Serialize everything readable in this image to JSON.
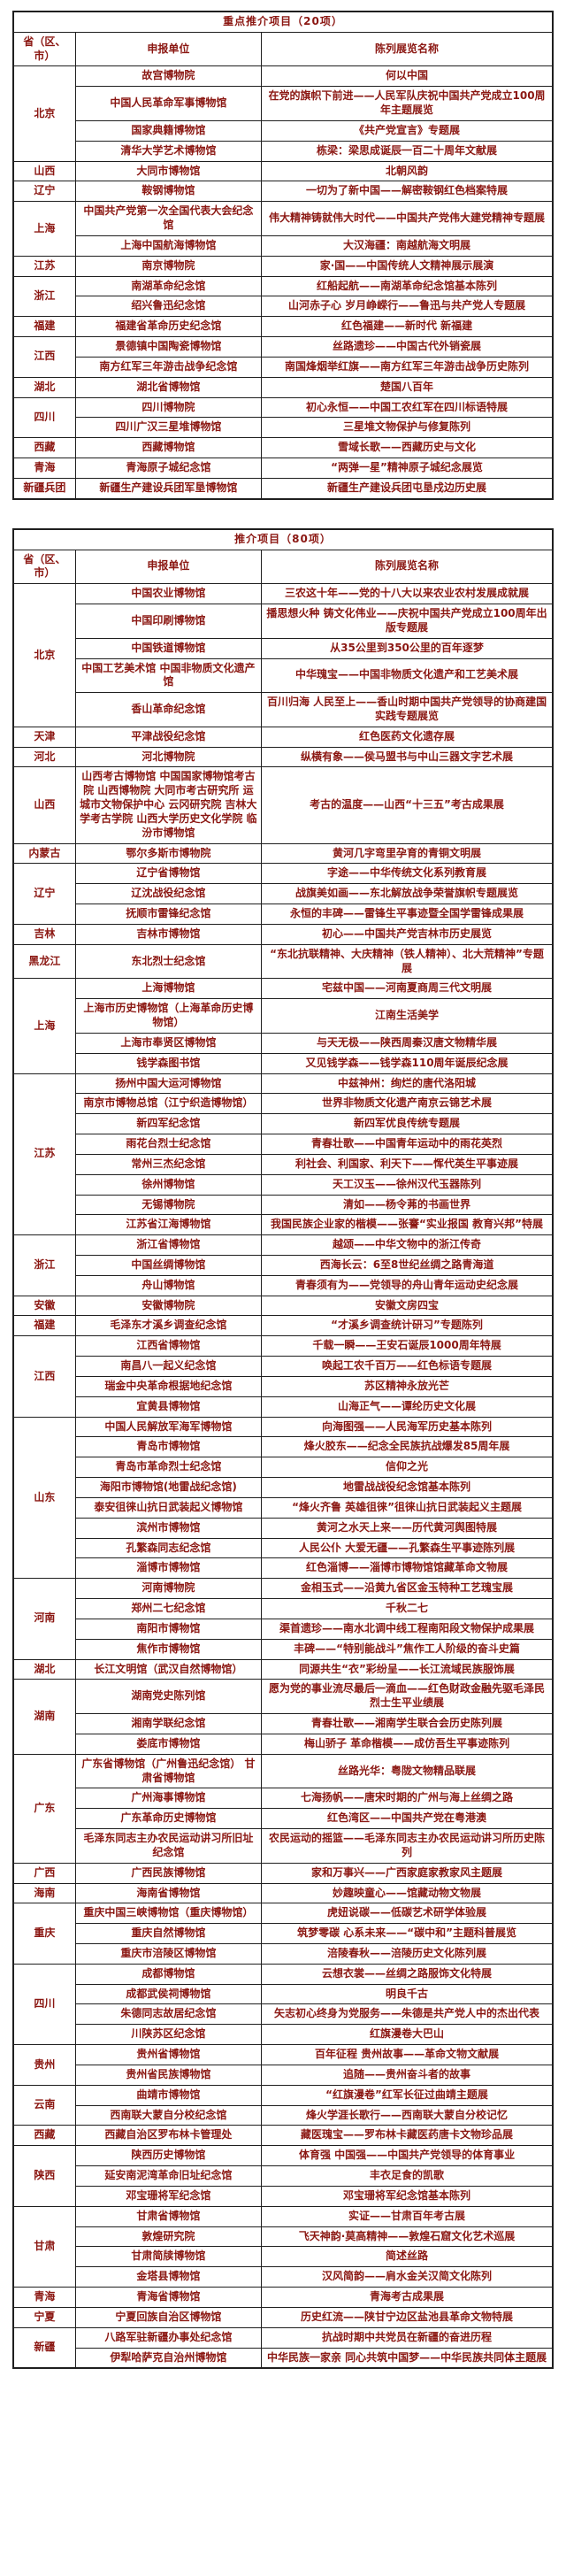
{
  "colors": {
    "text": "#8b1712",
    "border": "#1f1f1f",
    "background": "#ffffff"
  },
  "tables": [
    {
      "title": "重点推介项目（20项）",
      "headers": {
        "province": "省（区、市）",
        "unit": "申报单位",
        "exhibition": "陈列展览名称"
      },
      "groups": [
        {
          "province": "北京",
          "rows": [
            {
              "unit": "故宫博物院",
              "exhibition": "何以中国"
            },
            {
              "unit": "中国人民革命军事博物馆",
              "exhibition": "在党的旗帜下前进——人民军队庆祝中国共产党成立100周年主题展览"
            },
            {
              "unit": "国家典籍博物馆",
              "exhibition": "《共产党宣言》专题展"
            },
            {
              "unit": "清华大学艺术博物馆",
              "exhibition": "栋梁：梁思成诞辰一百二十周年文献展"
            }
          ]
        },
        {
          "province": "山西",
          "rows": [
            {
              "unit": "大同市博物馆",
              "exhibition": "北朝风韵"
            }
          ]
        },
        {
          "province": "辽宁",
          "rows": [
            {
              "unit": "鞍钢博物馆",
              "exhibition": "一切为了新中国——解密鞍钢红色档案特展"
            }
          ]
        },
        {
          "province": "上海",
          "rows": [
            {
              "unit": "中国共产党第一次全国代表大会纪念馆",
              "exhibition": "伟大精神铸就伟大时代——中国共产党伟大建党精神专题展"
            },
            {
              "unit": "上海中国航海博物馆",
              "exhibition": "大汉海疆：南越航海文明展"
            }
          ]
        },
        {
          "province": "江苏",
          "rows": [
            {
              "unit": "南京博物院",
              "exhibition": "家·国——中国传统人文精神展示展演"
            }
          ]
        },
        {
          "province": "浙江",
          "rows": [
            {
              "unit": "南湖革命纪念馆",
              "exhibition": "红船起航——南湖革命纪念馆基本陈列"
            },
            {
              "unit": "绍兴鲁迅纪念馆",
              "exhibition": "山河赤子心 岁月峥嵘行——鲁迅与共产党人专题展"
            }
          ]
        },
        {
          "province": "福建",
          "rows": [
            {
              "unit": "福建省革命历史纪念馆",
              "exhibition": "红色福建——新时代 新福建"
            }
          ]
        },
        {
          "province": "江西",
          "rows": [
            {
              "unit": "景德镇中国陶瓷博物馆",
              "exhibition": "丝路遗珍——中国古代外销瓷展"
            },
            {
              "unit": "南方红军三年游击战争纪念馆",
              "exhibition": "南国烽烟举红旗——南方红军三年游击战争历史陈列"
            }
          ]
        },
        {
          "province": "湖北",
          "rows": [
            {
              "unit": "湖北省博物馆",
              "exhibition": "楚国八百年"
            }
          ]
        },
        {
          "province": "四川",
          "rows": [
            {
              "unit": "四川博物院",
              "exhibition": "初心永恒——中国工农红军在四川标语特展"
            },
            {
              "unit": "四川广汉三星堆博物馆",
              "exhibition": "三星堆文物保护与修复陈列"
            }
          ]
        },
        {
          "province": "西藏",
          "rows": [
            {
              "unit": "西藏博物馆",
              "exhibition": "雪域长歌——西藏历史与文化"
            }
          ]
        },
        {
          "province": "青海",
          "rows": [
            {
              "unit": "青海原子城纪念馆",
              "exhibition": "“两弹一星”精神原子城纪念展览"
            }
          ]
        },
        {
          "province": "新疆兵团",
          "rows": [
            {
              "unit": "新疆生产建设兵团军垦博物馆",
              "exhibition": "新疆生产建设兵团屯垦戍边历史展"
            }
          ]
        }
      ]
    },
    {
      "title": "推介项目（80项）",
      "headers": {
        "province": "省（区、市）",
        "unit": "申报单位",
        "exhibition": "陈列展览名称"
      },
      "groups": [
        {
          "province": "北京",
          "rows": [
            {
              "unit": "中国农业博物馆",
              "exhibition": "三农这十年——党的十八大以来农业农村发展成就展"
            },
            {
              "unit": "中国印刷博物馆",
              "exhibition": "播思想火种 铸文化伟业——庆祝中国共产党成立100周年出版专题展"
            },
            {
              "unit": "中国铁道博物馆",
              "exhibition": "从35公里到350公里的百年逐梦"
            },
            {
              "unit": "中国工艺美术馆 中国非物质文化遗产馆",
              "exhibition": "中华瑰宝——中国非物质文化遗产和工艺美术展"
            },
            {
              "unit": "香山革命纪念馆",
              "exhibition": "百川归海 人民至上——香山时期中国共产党领导的协商建国实践专题展览"
            }
          ]
        },
        {
          "province": "天津",
          "rows": [
            {
              "unit": "平津战役纪念馆",
              "exhibition": "红色医药文化遗存展"
            }
          ]
        },
        {
          "province": "河北",
          "rows": [
            {
              "unit": "河北博物院",
              "exhibition": "纵横有象——侯马盟书与中山三器文字艺术展"
            }
          ]
        },
        {
          "province": "山西",
          "rows": [
            {
              "unit": "山西考古博物馆 中国国家博物馆考古院 山西博物院 大同市考古研究所 运城市文物保护中心 云冈研究院 吉林大学考古学院 山西大学历史文化学院 临汾市博物馆",
              "exhibition": "考古的温度——山西“十三五”考古成果展"
            }
          ]
        },
        {
          "province": "内蒙古",
          "rows": [
            {
              "unit": "鄂尔多斯市博物院",
              "exhibition": "黄河几字弯里孕育的青铜文明展"
            }
          ]
        },
        {
          "province": "辽宁",
          "rows": [
            {
              "unit": "辽宁省博物馆",
              "exhibition": "字途——中华传统文化系列教育展"
            },
            {
              "unit": "辽沈战役纪念馆",
              "exhibition": "战旗美如画——东北解放战争荣誉旗帜专题展览"
            },
            {
              "unit": "抚顺市雷锋纪念馆",
              "exhibition": "永恒的丰碑——雷锋生平事迹暨全国学雷锋成果展"
            }
          ]
        },
        {
          "province": "吉林",
          "rows": [
            {
              "unit": "吉林市博物馆",
              "exhibition": "初心——中国共产党吉林市历史展览"
            }
          ]
        },
        {
          "province": "黑龙江",
          "rows": [
            {
              "unit": "东北烈士纪念馆",
              "exhibition": "“东北抗联精神、大庆精神（铁人精神）、北大荒精神”专题展"
            }
          ]
        },
        {
          "province": "上海",
          "rows": [
            {
              "unit": "上海博物馆",
              "exhibition": "宅兹中国——河南夏商周三代文明展"
            },
            {
              "unit": "上海市历史博物馆（上海革命历史博物馆）",
              "exhibition": "江南生活美学"
            },
            {
              "unit": "上海市奉贤区博物馆",
              "exhibition": "与天无极——陕西周秦汉唐文物精华展"
            },
            {
              "unit": "钱学森图书馆",
              "exhibition": "又见钱学森——钱学森110周年诞辰纪念展"
            }
          ]
        },
        {
          "province": "江苏",
          "rows": [
            {
              "unit": "扬州中国大运河博物馆",
              "exhibition": "中兹神州：绚烂的唐代洛阳城"
            },
            {
              "unit": "南京市博物总馆（江宁织造博物馆）",
              "exhibition": "世界非物质文化遗产南京云锦艺术展"
            },
            {
              "unit": "新四军纪念馆",
              "exhibition": "新四军优良传统专题展"
            },
            {
              "unit": "雨花台烈士纪念馆",
              "exhibition": "青春壮歌——中国青年运动中的雨花英烈"
            },
            {
              "unit": "常州三杰纪念馆",
              "exhibition": "利社会、利国家、利天下——恽代英生平事迹展"
            },
            {
              "unit": "徐州博物馆",
              "exhibition": "天工汉玉——徐州汉代玉器陈列"
            },
            {
              "unit": "无锡博物院",
              "exhibition": "清如——杨令茀的书画世界"
            },
            {
              "unit": "江苏省江海博物馆",
              "exhibition": "我国民族企业家的楷模——张謇“实业报国 教育兴邦”特展"
            }
          ]
        },
        {
          "province": "浙江",
          "rows": [
            {
              "unit": "浙江省博物馆",
              "exhibition": "越颂——中华文物中的浙江传奇"
            },
            {
              "unit": "中国丝绸博物馆",
              "exhibition": "西海长云：6至8世纪丝绸之路青海道"
            },
            {
              "unit": "舟山博物馆",
              "exhibition": "青春须有为——党领导的舟山青年运动史纪念展"
            }
          ]
        },
        {
          "province": "安徽",
          "rows": [
            {
              "unit": "安徽博物院",
              "exhibition": "安徽文房四宝"
            }
          ]
        },
        {
          "province": "福建",
          "rows": [
            {
              "unit": "毛泽东才溪乡调查纪念馆",
              "exhibition": "“才溪乡调查统计研习”专题陈列"
            }
          ]
        },
        {
          "province": "江西",
          "rows": [
            {
              "unit": "江西省博物馆",
              "exhibition": "千载一瞬——王安石诞辰1000周年特展"
            },
            {
              "unit": "南昌八一起义纪念馆",
              "exhibition": "唤起工农千百万——红色标语专题展"
            },
            {
              "unit": "瑞金中央革命根据地纪念馆",
              "exhibition": "苏区精神永放光芒"
            },
            {
              "unit": "宜黄县博物馆",
              "exhibition": "山海正气——谭纶历史文化展"
            }
          ]
        },
        {
          "province": "山东",
          "rows": [
            {
              "unit": "中国人民解放军海军博物馆",
              "exhibition": "向海图强——人民海军历史基本陈列"
            },
            {
              "unit": "青岛市博物馆",
              "exhibition": "烽火胶东——纪念全民族抗战爆发85周年展"
            },
            {
              "unit": "青岛市革命烈士纪念馆",
              "exhibition": "信仰之光"
            },
            {
              "unit": "海阳市博物馆(地雷战纪念馆)",
              "exhibition": "地雷战战役纪念馆基本陈列"
            },
            {
              "unit": "泰安徂徕山抗日武装起义博物馆",
              "exhibition": "“烽火齐鲁 英雄徂徕”徂徕山抗日武装起义主题展"
            },
            {
              "unit": "滨州市博物馆",
              "exhibition": "黄河之水天上来——历代黄河舆图特展"
            },
            {
              "unit": "孔繁森同志纪念馆",
              "exhibition": "人民公仆 大爱无疆——孔繁森生平事迹陈列展"
            },
            {
              "unit": "淄博市博物馆",
              "exhibition": "红色淄博——淄博市博物馆馆藏革命文物展"
            }
          ]
        },
        {
          "province": "河南",
          "rows": [
            {
              "unit": "河南博物院",
              "exhibition": "金相玉式——沿黄九省区金玉特种工艺瑰宝展"
            },
            {
              "unit": "郑州二七纪念馆",
              "exhibition": "千秋二七"
            },
            {
              "unit": "南阳市博物馆",
              "exhibition": "渠首遗珍——南水北调中线工程南阳段文物保护成果展"
            },
            {
              "unit": "焦作市博物馆",
              "exhibition": "丰碑——“特别能战斗”焦作工人阶级的奋斗史篇"
            }
          ]
        },
        {
          "province": "湖北",
          "rows": [
            {
              "unit": "长江文明馆（武汉自然博物馆）",
              "exhibition": "同源共生“衣”彩纷呈——长江流域民族服饰展"
            }
          ]
        },
        {
          "province": "湖南",
          "rows": [
            {
              "unit": "湖南党史陈列馆",
              "exhibition": "愿为党的事业流尽最后一滴血——红色财政金融先驱毛泽民烈士生平业绩展"
            },
            {
              "unit": "湘南学联纪念馆",
              "exhibition": "青春壮歌——湘南学生联合会历史陈列展"
            },
            {
              "unit": "娄底市博物馆",
              "exhibition": "梅山骄子 革命楷模——成仿吾生平事迹陈列"
            }
          ]
        },
        {
          "province": "广东",
          "rows": [
            {
              "unit": "广东省博物馆（广州鲁迅纪念馆） 甘肃省博物馆",
              "exhibition": "丝路光华：粤陇文物精品联展"
            },
            {
              "unit": "广州海事博物馆",
              "exhibition": "七海扬帆——唐宋时期的广州与海上丝绸之路"
            },
            {
              "unit": "广东革命历史博物馆",
              "exhibition": "红色湾区——中国共产党在粤港澳"
            },
            {
              "unit": "毛泽东同志主办农民运动讲习所旧址纪念馆",
              "exhibition": "农民运动的摇篮——毛泽东同志主办农民运动讲习所历史陈列"
            }
          ]
        },
        {
          "province": "广西",
          "rows": [
            {
              "unit": "广西民族博物馆",
              "exhibition": "家和万事兴——广西家庭家教家风主题展"
            }
          ]
        },
        {
          "province": "海南",
          "rows": [
            {
              "unit": "海南省博物馆",
              "exhibition": "妙趣映童心——馆藏动物文物展"
            }
          ]
        },
        {
          "province": "重庆",
          "rows": [
            {
              "unit": "重庆中国三峡博物馆（重庆博物馆）",
              "exhibition": "虎妞说碳——低碳艺术研学体验展"
            },
            {
              "unit": "重庆自然博物馆",
              "exhibition": "筑梦零碳 心系未来——“碳中和”主题科普展览"
            },
            {
              "unit": "重庆市涪陵区博物馆",
              "exhibition": "涪陵春秋——涪陵历史文化陈列展"
            }
          ]
        },
        {
          "province": "四川",
          "rows": [
            {
              "unit": "成都博物馆",
              "exhibition": "云想衣裳——丝绸之路服饰文化特展"
            },
            {
              "unit": "成都武侯祠博物馆",
              "exhibition": "明良千古"
            },
            {
              "unit": "朱德同志故居纪念馆",
              "exhibition": "矢志初心终身为党服务——朱德是共产党人中的杰出代表"
            },
            {
              "unit": "川陕苏区纪念馆",
              "exhibition": "红旗漫卷大巴山"
            }
          ]
        },
        {
          "province": "贵州",
          "rows": [
            {
              "unit": "贵州省博物馆",
              "exhibition": "百年征程 贵州故事——革命文物文献展"
            },
            {
              "unit": "贵州省民族博物馆",
              "exhibition": "追随——贵州奋斗者的故事"
            }
          ]
        },
        {
          "province": "云南",
          "rows": [
            {
              "unit": "曲靖市博物馆",
              "exhibition": "“红旗漫卷”红军长征过曲靖主题展"
            },
            {
              "unit": "西南联大蒙自分校纪念馆",
              "exhibition": "烽火学涯长歌行——西南联大蒙自分校记忆"
            }
          ]
        },
        {
          "province": "西藏",
          "rows": [
            {
              "unit": "西藏自治区罗布林卡管理处",
              "exhibition": "藏医瑰宝——罗布林卡藏医药唐卡文物珍品展"
            }
          ]
        },
        {
          "province": "陕西",
          "rows": [
            {
              "unit": "陕西历史博物馆",
              "exhibition": "体育强 中国强——中国共产党领导的体育事业"
            },
            {
              "unit": "延安南泥湾革命旧址纪念馆",
              "exhibition": "丰衣足食的凯歌"
            },
            {
              "unit": "邓宝珊将军纪念馆",
              "exhibition": "邓宝珊将军纪念馆基本陈列"
            }
          ]
        },
        {
          "province": "甘肃",
          "rows": [
            {
              "unit": "甘肃省博物馆",
              "exhibition": "实证——甘肃百年考古展"
            },
            {
              "unit": "敦煌研究院",
              "exhibition": "飞天神韵·莫高精神——敦煌石窟文化艺术巡展"
            },
            {
              "unit": "甘肃简牍博物馆",
              "exhibition": "简述丝路"
            },
            {
              "unit": "金塔县博物馆",
              "exhibition": "汉风简韵——肩水金关汉简文化陈列"
            }
          ]
        },
        {
          "province": "青海",
          "rows": [
            {
              "unit": "青海省博物馆",
              "exhibition": "青海考古成果展"
            }
          ]
        },
        {
          "province": "宁夏",
          "rows": [
            {
              "unit": "宁夏回族自治区博物馆",
              "exhibition": "历史红流——陕甘宁边区盐池县革命文物特展"
            }
          ]
        },
        {
          "province": "新疆",
          "rows": [
            {
              "unit": "八路军驻新疆办事处纪念馆",
              "exhibition": "抗战时期中共党员在新疆的奋进历程"
            },
            {
              "unit": "伊犁哈萨克自治州博物馆",
              "exhibition": "中华民族一家亲 同心共筑中国梦——中华民族共同体主题展"
            }
          ]
        }
      ]
    }
  ]
}
